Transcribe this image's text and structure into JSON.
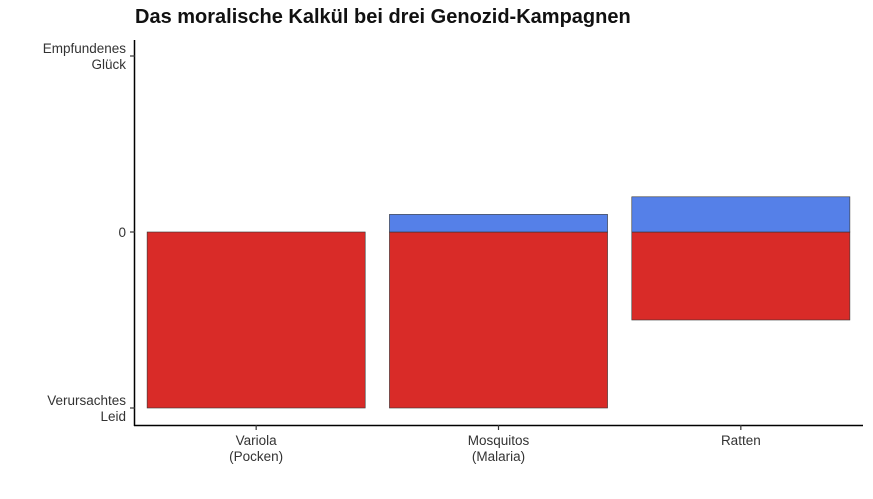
{
  "chart_data": {
    "type": "bar",
    "title": "Das moralische Kalkül bei drei Genozid-Kampagnen",
    "categories": [
      [
        "Variola",
        "(Pocken)"
      ],
      [
        "Mosquitos",
        "(Malaria)"
      ],
      [
        "Ratten"
      ]
    ],
    "series": [
      {
        "values": [
          -1,
          -1,
          -0.5
        ],
        "color": "#d92b28"
      },
      {
        "values": [
          0,
          0.1,
          0.2
        ],
        "color": "#5580e8"
      }
    ],
    "ylim": [
      -1,
      1
    ],
    "y_ticks": [
      {
        "value": 1,
        "label": [
          "Empfundenes",
          "Glück"
        ]
      },
      {
        "value": 0,
        "label": [
          "0"
        ]
      },
      {
        "value": -1,
        "label": [
          "Verursachtes",
          "Leid"
        ]
      }
    ],
    "xlabel": "",
    "ylabel": "",
    "grid": false,
    "legend": "none"
  }
}
